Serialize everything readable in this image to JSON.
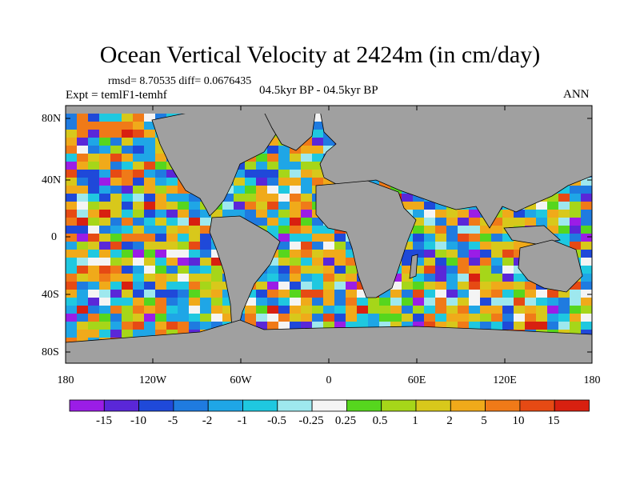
{
  "title": "Ocean Vertical Velocity at 2424m (in cm/day)",
  "stats_line": "rmsd= 8.70535 diff= 0.0676435",
  "experiment_line": "Expt = temlF1-temhf",
  "period_line": "04.5kyr BP - 04.5kyr BP",
  "season": "ANN",
  "latitude_labels": [
    "80N",
    "40N",
    "0",
    "40S",
    "80S"
  ],
  "longitude_labels": [
    "180",
    "120W",
    "60W",
    "0",
    "60E",
    "120E",
    "180"
  ],
  "colorbar": {
    "labels": [
      "-15",
      "-10",
      "-5",
      "-2",
      "-1",
      "-0.5",
      "-0.25",
      "0.25",
      "0.5",
      "1",
      "2",
      "5",
      "10",
      "15"
    ],
    "colors": [
      "#9b1de6",
      "#5a27d8",
      "#1f49d9",
      "#1f7be0",
      "#1fa6e6",
      "#1fc8e0",
      "#9ee8ee",
      "#f4f4f4",
      "#56d61e",
      "#a6d619",
      "#d8c81b",
      "#f0aa1a",
      "#f07a18",
      "#e64a14",
      "#d82010"
    ]
  },
  "colors": {
    "land": "#a0a0a0",
    "frame": "#000000",
    "background": "#ffffff"
  }
}
